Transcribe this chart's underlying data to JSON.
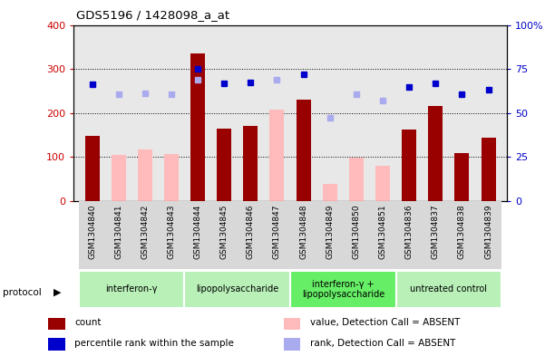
{
  "title": "GDS5196 / 1428098_a_at",
  "samples": [
    "GSM1304840",
    "GSM1304841",
    "GSM1304842",
    "GSM1304843",
    "GSM1304844",
    "GSM1304845",
    "GSM1304846",
    "GSM1304847",
    "GSM1304848",
    "GSM1304849",
    "GSM1304850",
    "GSM1304851",
    "GSM1304836",
    "GSM1304837",
    "GSM1304838",
    "GSM1304839"
  ],
  "count_values": [
    148,
    null,
    null,
    null,
    335,
    165,
    170,
    null,
    230,
    null,
    null,
    null,
    163,
    215,
    110,
    143
  ],
  "absent_values": [
    null,
    105,
    117,
    108,
    null,
    null,
    null,
    207,
    null,
    40,
    98,
    80,
    null,
    null,
    null,
    null
  ],
  "rank_present": [
    265,
    null,
    null,
    null,
    300,
    268,
    270,
    null,
    288,
    null,
    null,
    null,
    260,
    268,
    242,
    252
  ],
  "rank_absent": [
    null,
    242,
    245,
    242,
    275,
    null,
    null,
    275,
    null,
    190,
    242,
    228,
    null,
    null,
    null,
    null
  ],
  "protocols": [
    {
      "label": "interferon-γ",
      "start": 0,
      "end": 4,
      "color": "#b8f0b8"
    },
    {
      "label": "lipopolysaccharide",
      "start": 4,
      "end": 8,
      "color": "#b8f0b8"
    },
    {
      "label": "interferon-γ +\nlipopolysaccharide",
      "start": 8,
      "end": 12,
      "color": "#66ee66"
    },
    {
      "label": "untreated control",
      "start": 12,
      "end": 16,
      "color": "#b8f0b8"
    }
  ],
  "ylim_left": [
    0,
    400
  ],
  "ylim_right": [
    0,
    100
  ],
  "yticks_left": [
    0,
    100,
    200,
    300,
    400
  ],
  "yticks_right": [
    0,
    25,
    50,
    75,
    100
  ],
  "bar_color_dark": "#990000",
  "bar_color_absent": "#ffbbbb",
  "dot_color_present": "#0000cc",
  "dot_color_absent": "#aaaaee",
  "left_tick_color": "#cc0000",
  "right_tick_color": "#0000cc",
  "plot_bg": "#e8e8e8"
}
